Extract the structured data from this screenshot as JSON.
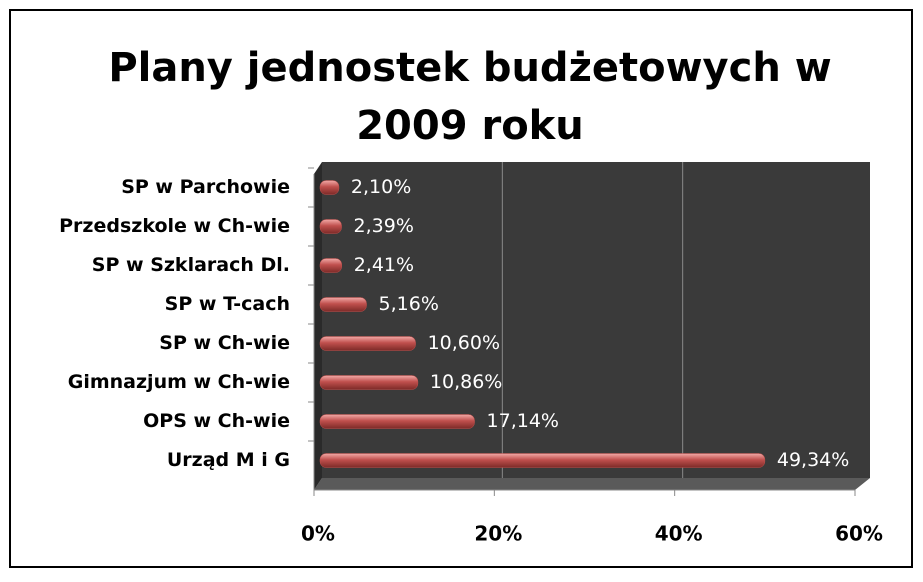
{
  "chart_data": {
    "type": "hbar",
    "title": "Plany jednostek budżetowych w 2009 roku",
    "categories": [
      "SP w Parchowie",
      "Przedszkole w Ch-wie",
      "SP w Szklarach Dl.",
      "SP w T-cach",
      "SP w Ch-wie",
      "Gimnazjum w Ch-wie",
      "OPS w Ch-wie",
      "Urząd M i G"
    ],
    "values": [
      2.1,
      2.39,
      2.41,
      5.16,
      10.6,
      10.86,
      17.14,
      49.34
    ],
    "value_labels": [
      "2,10%",
      "2,39%",
      "2,41%",
      "5,16%",
      "10,60%",
      "10,86%",
      "17,14%",
      "49,34%"
    ],
    "color": "#c0504d",
    "xlim": [
      0,
      60
    ],
    "xticks": [
      {
        "value": 0,
        "label": "0%"
      },
      {
        "value": 20,
        "label": "20%"
      },
      {
        "value": 40,
        "label": "40%"
      },
      {
        "value": 60,
        "label": "60%"
      }
    ],
    "grid": true
  }
}
